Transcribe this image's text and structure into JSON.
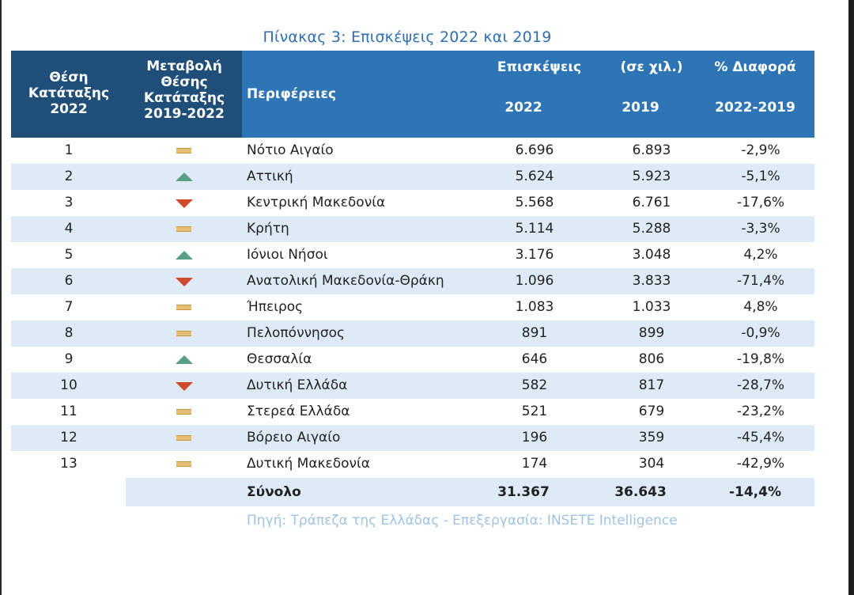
{
  "title": "Πίνακας 3: Επισκέψεις 2022 και 2019",
  "header": {
    "rank_line1": "Θέση",
    "rank_line2": "Κατάταξης",
    "rank_line3": "2022",
    "change_line1": "Μεταβολή",
    "change_line2": "Θέσης",
    "change_line3": "Κατάταξης",
    "change_line4": "2019-2022",
    "region": "Περιφέρειες",
    "visits_label": "Επισκέψεις",
    "unit_label": "(σε χιλ.)",
    "year_2022": "2022",
    "year_2019": "2019",
    "diff_label": "% Διαφορά",
    "diff_period": "2022-2019"
  },
  "rows": [
    {
      "rank": "1",
      "change": "same",
      "region": "Νότιο Αιγαίο",
      "v2022": "6.696",
      "v2019": "6.893",
      "diff": "-2,9%"
    },
    {
      "rank": "2",
      "change": "up",
      "region": "Αττική",
      "v2022": "5.624",
      "v2019": "5.923",
      "diff": "-5,1%"
    },
    {
      "rank": "3",
      "change": "down",
      "region": "Κεντρική Μακεδονία",
      "v2022": "5.568",
      "v2019": "6.761",
      "diff": "-17,6%"
    },
    {
      "rank": "4",
      "change": "same",
      "region": "Κρήτη",
      "v2022": "5.114",
      "v2019": "5.288",
      "diff": "-3,3%"
    },
    {
      "rank": "5",
      "change": "up",
      "region": "Ιόνιοι Νήσοι",
      "v2022": "3.176",
      "v2019": "3.048",
      "diff": "4,2%"
    },
    {
      "rank": "6",
      "change": "down",
      "region": "Ανατολική Μακεδονία-Θράκη",
      "v2022": "1.096",
      "v2019": "3.833",
      "diff": "-71,4%"
    },
    {
      "rank": "7",
      "change": "same",
      "region": "Ήπειρος",
      "v2022": "1.083",
      "v2019": "1.033",
      "diff": "4,8%"
    },
    {
      "rank": "8",
      "change": "same",
      "region": "Πελοπόννησος",
      "v2022": "891",
      "v2019": "899",
      "diff": "-0,9%"
    },
    {
      "rank": "9",
      "change": "up",
      "region": "Θεσσαλία",
      "v2022": "646",
      "v2019": "806",
      "diff": "-19,8%"
    },
    {
      "rank": "10",
      "change": "down",
      "region": "Δυτική Ελλάδα",
      "v2022": "582",
      "v2019": "817",
      "diff": "-28,7%"
    },
    {
      "rank": "11",
      "change": "same",
      "region": "Στερεά Ελλάδα",
      "v2022": "521",
      "v2019": "679",
      "diff": "-23,2%"
    },
    {
      "rank": "12",
      "change": "same",
      "region": "Βόρειο Αιγαίο",
      "v2022": "196",
      "v2019": "359",
      "diff": "-45,4%"
    },
    {
      "rank": "13",
      "change": "same",
      "region": "Δυτική Μακεδονία",
      "v2022": "174",
      "v2019": "304",
      "diff": "-42,9%"
    }
  ],
  "total": {
    "label": "Σύνολο",
    "v2022": "31.367",
    "v2019": "36.643",
    "diff": "-14,4%"
  },
  "source": "Πηγή: Τράπεζα της Ελλάδας - Επεξεργασία: INSETE Intelligence",
  "colors": {
    "header_dark": "#1f4e79",
    "header_blue": "#2e75b6",
    "row_shade": "#deebf7",
    "up_indicator": "#5a9e83",
    "down_indicator": "#cf4a2a",
    "same_indicator": "#e6bd74"
  }
}
